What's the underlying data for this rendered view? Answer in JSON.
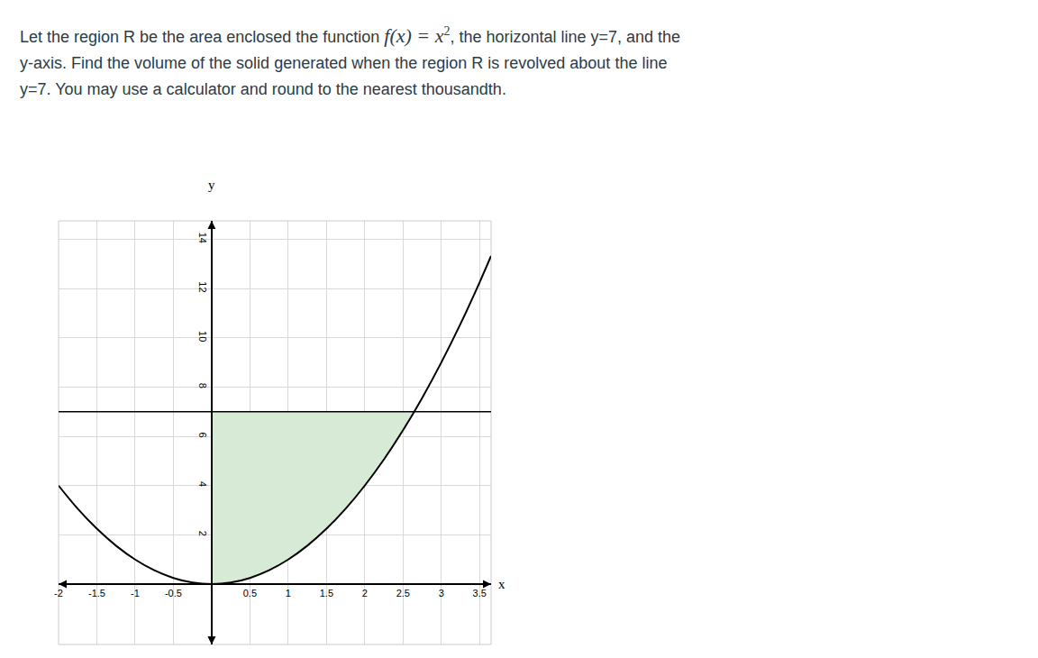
{
  "problem": {
    "before": "Let the region R be the area enclosed the function ",
    "math": "f(x) = x",
    "exponent": "2",
    "after": ", the horizontal line y=7, and the y-axis.  Find the volume of the solid generated when the region R is revolved about the line y=7.  You may use a calculator and round to the nearest thousandth."
  },
  "chart_data": {
    "type": "line",
    "xlabel": "x",
    "ylabel": "y",
    "xlim": [
      -2,
      3.65
    ],
    "ylim": [
      -2.45,
      14.75
    ],
    "xticks": [
      -2,
      -1.5,
      -1,
      -0.5,
      0.5,
      1,
      1.5,
      2,
      2.5,
      3,
      3.5
    ],
    "yticks": [
      2,
      4,
      6,
      8,
      10,
      12,
      14
    ],
    "grid": true,
    "series": [
      {
        "type": "area",
        "color": "#d6ead6",
        "x": [
          0,
          0.25,
          0.5,
          0.75,
          1,
          1.25,
          1.5,
          1.75,
          2,
          2.25,
          2.5,
          2.6458,
          0
        ],
        "values": [
          0,
          0.0625,
          0.25,
          0.5625,
          1,
          1.5625,
          2.25,
          3.0625,
          4,
          5.0625,
          6.25,
          7,
          7
        ]
      },
      {
        "type": "line",
        "color": "#000000",
        "x": [
          -2,
          -1.75,
          -1.5,
          -1.25,
          -1,
          -0.75,
          -0.5,
          -0.25,
          0,
          0.25,
          0.5,
          0.75,
          1,
          1.25,
          1.5,
          1.75,
          2,
          2.25,
          2.5,
          2.75,
          3,
          3.25,
          3.5,
          3.65
        ],
        "values": [
          4,
          3.0625,
          2.25,
          1.5625,
          1,
          0.5625,
          0.25,
          0.0625,
          0,
          0.0625,
          0.25,
          0.5625,
          1,
          1.5625,
          2.25,
          3.0625,
          4,
          5.0625,
          6.25,
          7.5625,
          9,
          10.5625,
          12.25,
          13.3225
        ]
      },
      {
        "type": "line",
        "color": "#000000",
        "x": [
          -2,
          3.65
        ],
        "values": [
          7,
          7
        ]
      }
    ]
  }
}
